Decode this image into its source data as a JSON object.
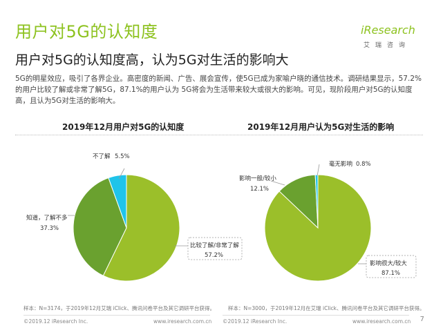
{
  "header": {
    "title": "用户对5G的认知度",
    "subtitle": "用户对5G的认知度高，认为5G对生活的影响大",
    "logo_text": "iResearch",
    "logo_sub": "艾瑞咨询"
  },
  "body_text": "5G的明星效应，吸引了各界企业。高密度的新闻、广告、展会宣传，使5G已成为家喻户晓的通信技术。调研结果显示，57.2%的用户比较了解或非常了解5G，87.1%的用户认为 5G将会为生活带来较大或很大的影响。可见，现阶段用户对5G的认知度高，且认为5G对生活的影响大。",
  "chart_data": [
    {
      "type": "pie",
      "title": "2019年12月用户对5G的认知度",
      "slices": [
        {
          "label": "比较了解/非常了解",
          "value": 57.2,
          "display": "57.2%",
          "color": "#9bbf2a"
        },
        {
          "label": "知道，了解不多",
          "value": 37.3,
          "display": "37.3%",
          "color": "#6aa12f"
        },
        {
          "label": "不了解",
          "value": 5.5,
          "display": "5.5%",
          "color": "#1fc4ea"
        }
      ]
    },
    {
      "type": "pie",
      "title": "2019年12月用户认为5G对生活的影响",
      "slices": [
        {
          "label": "影响很大/较大",
          "value": 87.1,
          "display": "87.1%",
          "color": "#9bbf2a"
        },
        {
          "label": "影响一般/较小",
          "value": 12.1,
          "display": "12.1%",
          "color": "#6aa12f"
        },
        {
          "label": "毫无影响",
          "value": 0.8,
          "display": "0.8%",
          "color": "#1fc4ea"
        }
      ]
    }
  ],
  "footer": {
    "note_left": "样本：N=3174，于2019年12月艾瑞 iClick、腾讯问卷平台及其它调研平台获得。",
    "note_right": "样本：N=3000，于2019年12月在艾瑞 iClick、腾讯问卷平台及其它调研平台获得。",
    "copyright_left": "©2019.12 iResearch Inc.",
    "url_left": "www.iresearch.com.cn",
    "copyright_right": "©2019.12 iResearch Inc.",
    "url_right": "www.iresearch.com.cn",
    "page": "7"
  }
}
